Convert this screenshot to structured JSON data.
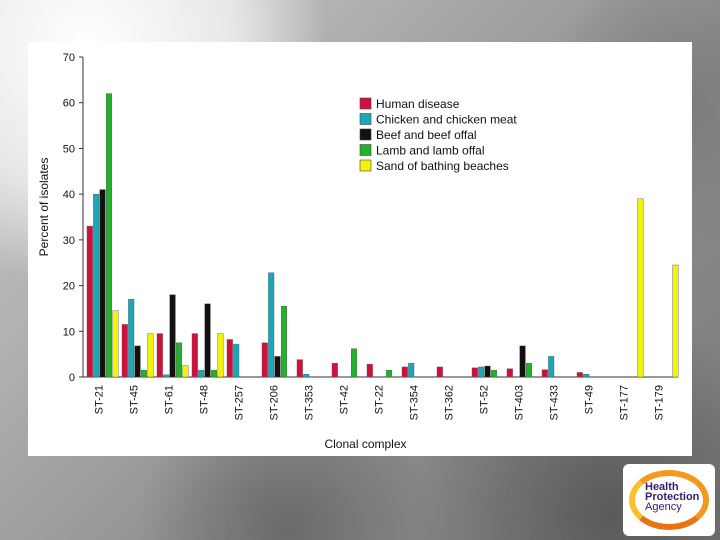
{
  "chart_data": {
    "type": "bar",
    "title": "",
    "xlabel": "Clonal complex",
    "ylabel": "Percent of isolates",
    "ylim": [
      0,
      70
    ],
    "yticks": [
      0,
      10,
      20,
      30,
      40,
      50,
      60,
      70
    ],
    "grid": false,
    "legend_position": "top-center",
    "categories": [
      "ST-21",
      "ST-45",
      "ST-61",
      "ST-48",
      "ST-257",
      "ST-206",
      "ST-353",
      "ST-42",
      "ST-22",
      "ST-354",
      "ST-362",
      "ST-52",
      "ST-403",
      "ST-433",
      "ST-49",
      "ST-177",
      "ST-179"
    ],
    "series": [
      {
        "name": "Human disease",
        "color": "#d0103a",
        "values": [
          33,
          11.5,
          9.5,
          9.5,
          8.2,
          7.5,
          3.8,
          3,
          2.8,
          2.2,
          2.2,
          2,
          1.8,
          1.6,
          1,
          0,
          0
        ]
      },
      {
        "name": "Chicken and chicken meat",
        "color": "#1aa7b8",
        "values": [
          40,
          17,
          0.5,
          1.5,
          7.2,
          22.8,
          0.6,
          0,
          0,
          3,
          0,
          2.2,
          0,
          4.5,
          0.6,
          0,
          0
        ]
      },
      {
        "name": "Beef and beef offal",
        "color": "#111111",
        "values": [
          41,
          6.8,
          18,
          16,
          0,
          4.5,
          0,
          0,
          0,
          0,
          0,
          2.4,
          6.8,
          0,
          0,
          0,
          0
        ]
      },
      {
        "name": "Lamb and lamb offal",
        "color": "#22b22a",
        "values": [
          62,
          1.5,
          7.5,
          1.5,
          0,
          15.5,
          0,
          6.2,
          1.5,
          0,
          0,
          1.5,
          3,
          0,
          0,
          0,
          0
        ]
      },
      {
        "name": "Sand of bathing beaches",
        "color": "#f2f20c",
        "values": [
          14.5,
          9.5,
          2.5,
          9.5,
          0,
          0,
          0,
          0,
          0,
          0,
          0,
          0,
          0,
          0,
          0,
          39,
          24.5
        ]
      }
    ]
  },
  "logo": {
    "line1": "Health",
    "line2": "Protection",
    "line3": "Agency",
    "ring_color": "#f39a1e",
    "text_color": "#3a1b6e"
  }
}
